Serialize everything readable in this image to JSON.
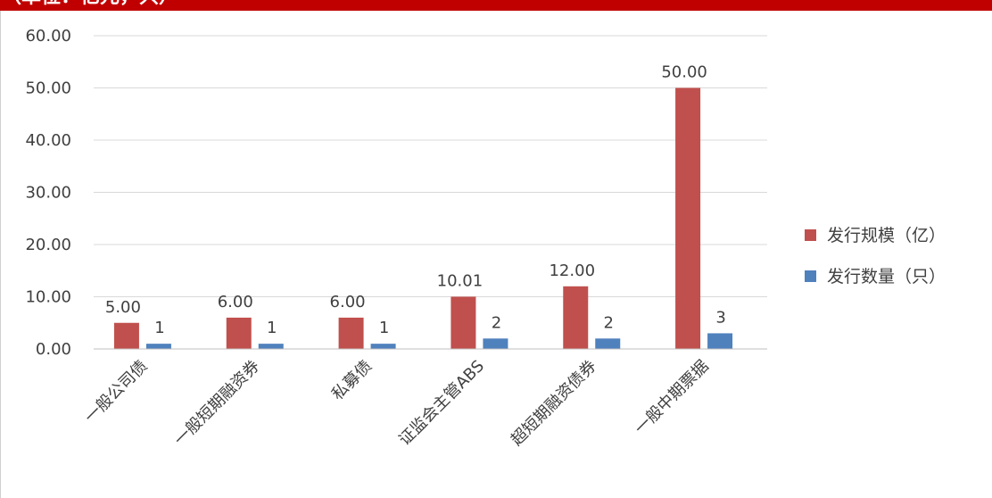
{
  "header": {
    "text": "（单位：亿元，只）"
  },
  "chart_data": {
    "type": "bar",
    "categories": [
      "一般公司债",
      "一般短期融资券",
      "私募债",
      "证监会主管ABS",
      "超短期融资债券",
      "一般中期票据"
    ],
    "series": [
      {
        "name": "发行规模（亿）",
        "values": [
          5.0,
          6.0,
          6.0,
          10.01,
          12.0,
          50.0
        ],
        "labels": [
          "5.00",
          "6.00",
          "6.00",
          "10.01",
          "12.00",
          "50.00"
        ],
        "color": "#c0504d"
      },
      {
        "name": "发行数量（只）",
        "values": [
          1,
          1,
          1,
          2,
          2,
          3
        ],
        "labels": [
          "1",
          "1",
          "1",
          "2",
          "2",
          "3"
        ],
        "color": "#4f81bd"
      }
    ],
    "yticks": [
      "0.00",
      "10.00",
      "20.00",
      "30.00",
      "40.00",
      "50.00",
      "60.00"
    ],
    "ylim": [
      0,
      60
    ],
    "grid": true,
    "legend_position": "right"
  }
}
